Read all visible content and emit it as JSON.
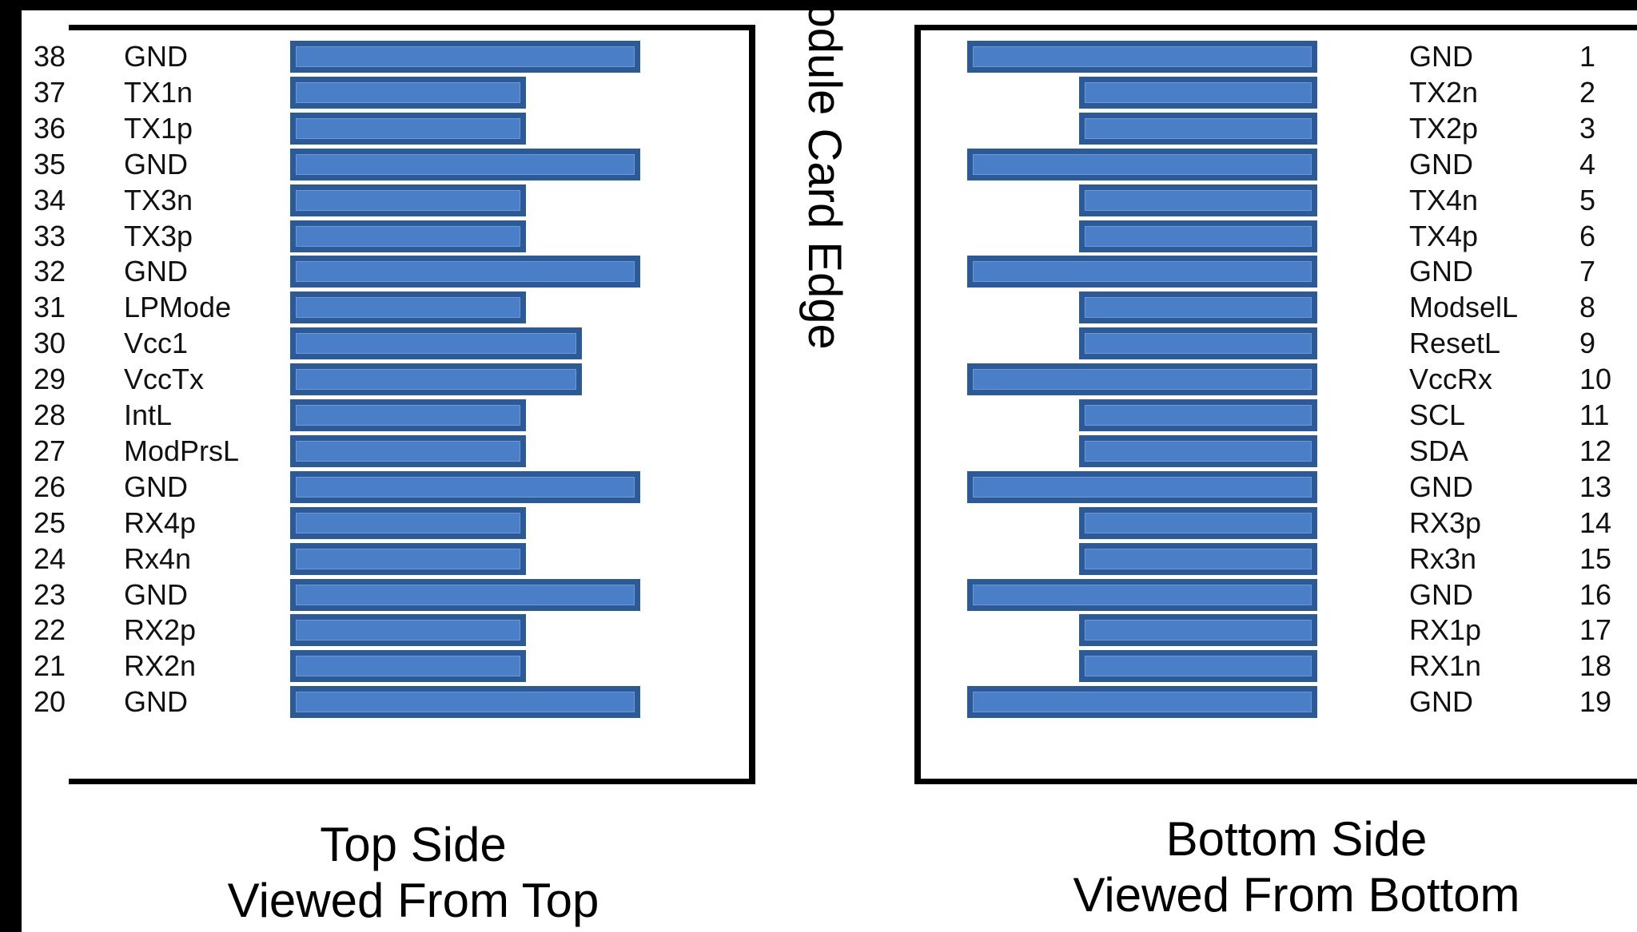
{
  "edge_label": "Module Card Edge",
  "top_side": {
    "caption_line1": "Top Side",
    "caption_line2": "Viewed From Top",
    "pins": [
      {
        "num": "38",
        "name": "GND",
        "pad": "long"
      },
      {
        "num": "37",
        "name": "TX1n",
        "pad": "short"
      },
      {
        "num": "36",
        "name": "TX1p",
        "pad": "short"
      },
      {
        "num": "35",
        "name": "GND",
        "pad": "long"
      },
      {
        "num": "34",
        "name": "TX3n",
        "pad": "short"
      },
      {
        "num": "33",
        "name": "TX3p",
        "pad": "short"
      },
      {
        "num": "32",
        "name": "GND",
        "pad": "long"
      },
      {
        "num": "31",
        "name": "LPMode",
        "pad": "short"
      },
      {
        "num": "30",
        "name": "Vcc1",
        "pad": "medium"
      },
      {
        "num": "29",
        "name": "VccTx",
        "pad": "medium"
      },
      {
        "num": "28",
        "name": "IntL",
        "pad": "short"
      },
      {
        "num": "27",
        "name": "ModPrsL",
        "pad": "short"
      },
      {
        "num": "26",
        "name": "GND",
        "pad": "long"
      },
      {
        "num": "25",
        "name": "RX4p",
        "pad": "short"
      },
      {
        "num": "24",
        "name": "Rx4n",
        "pad": "short"
      },
      {
        "num": "23",
        "name": "GND",
        "pad": "long"
      },
      {
        "num": "22",
        "name": "RX2p",
        "pad": "short"
      },
      {
        "num": "21",
        "name": "RX2n",
        "pad": "short"
      },
      {
        "num": "20",
        "name": "GND",
        "pad": "long"
      }
    ]
  },
  "bottom_side": {
    "caption_line1": "Bottom Side",
    "caption_line2": "Viewed From Bottom",
    "pins": [
      {
        "num": "1",
        "name": "GND",
        "pad": "long"
      },
      {
        "num": "2",
        "name": "TX2n",
        "pad": "short"
      },
      {
        "num": "3",
        "name": "TX2p",
        "pad": "short"
      },
      {
        "num": "4",
        "name": "GND",
        "pad": "long"
      },
      {
        "num": "5",
        "name": "TX4n",
        "pad": "short"
      },
      {
        "num": "6",
        "name": "TX4p",
        "pad": "short"
      },
      {
        "num": "7",
        "name": "GND",
        "pad": "long"
      },
      {
        "num": "8",
        "name": "ModselL",
        "pad": "short"
      },
      {
        "num": "9",
        "name": "ResetL",
        "pad": "short"
      },
      {
        "num": "10",
        "name": "VccRx",
        "pad": "long"
      },
      {
        "num": "11",
        "name": "SCL",
        "pad": "short"
      },
      {
        "num": "12",
        "name": "SDA",
        "pad": "short"
      },
      {
        "num": "13",
        "name": "GND",
        "pad": "long"
      },
      {
        "num": "14",
        "name": "RX3p",
        "pad": "short"
      },
      {
        "num": "15",
        "name": "Rx3n",
        "pad": "short"
      },
      {
        "num": "16",
        "name": "GND",
        "pad": "long"
      },
      {
        "num": "17",
        "name": "RX1p",
        "pad": "short"
      },
      {
        "num": "18",
        "name": "RX1n",
        "pad": "short"
      },
      {
        "num": "19",
        "name": "GND",
        "pad": "long"
      }
    ]
  }
}
